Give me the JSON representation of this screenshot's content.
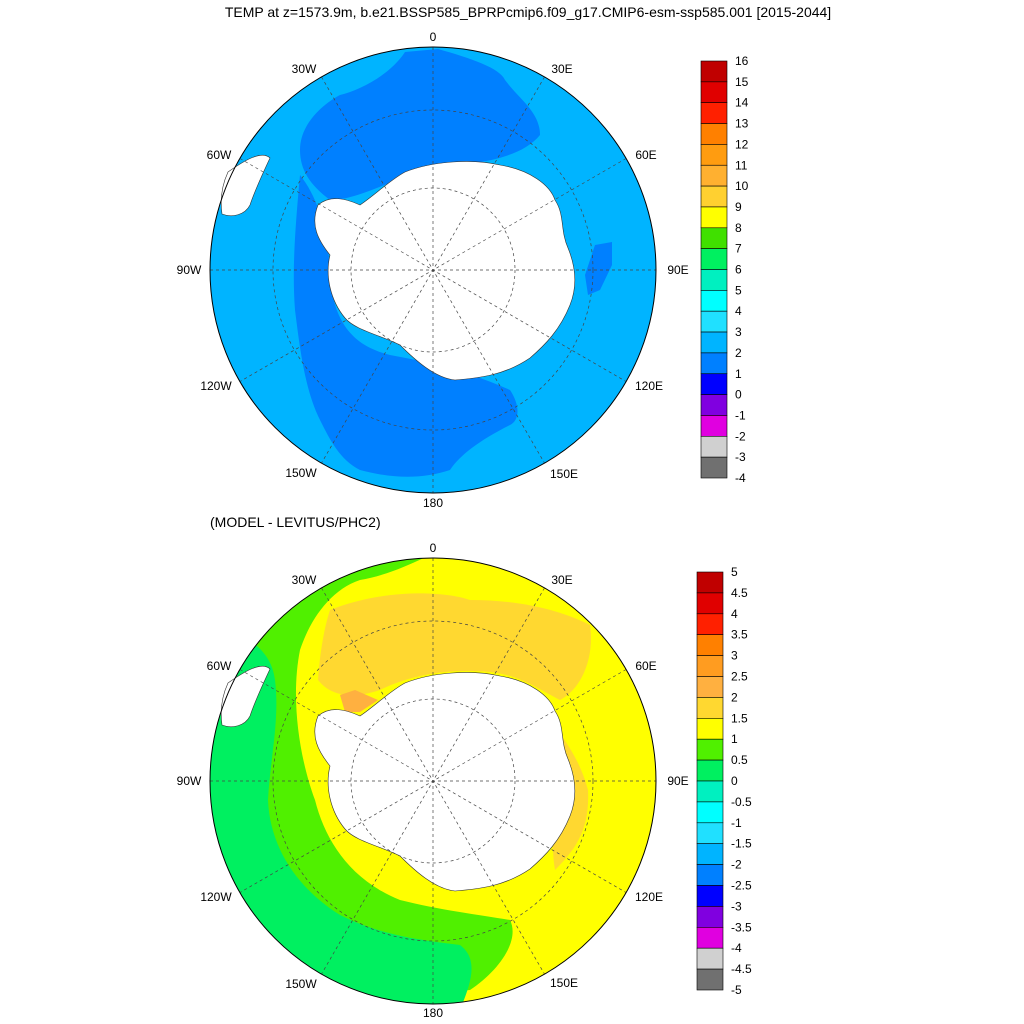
{
  "title": "TEMP at z=1573.9m, b.e21.BSSP585_BPRPcmip6.f09_g17.CMIP6-esm-ssp585.001 [2015-2044]",
  "subtitle": "(MODEL - LEVITUS/PHC2)",
  "longitude_labels": {
    "lon_0": "0",
    "lon_30e": "30E",
    "lon_60e": "60E",
    "lon_90e": "90E",
    "lon_120e": "120E",
    "lon_150e": "150E",
    "lon_180": "180",
    "lon_150w": "150W",
    "lon_120w": "120W",
    "lon_90w": "90W",
    "lon_60w": "60W",
    "lon_30w": "30W"
  },
  "colorbar_top": {
    "labels": [
      "16",
      "15",
      "14",
      "13",
      "12",
      "11",
      "10",
      "9",
      "8",
      "7",
      "6",
      "5",
      "4",
      "3",
      "2",
      "1",
      "0",
      "-1",
      "-2",
      "-3",
      "-4"
    ],
    "colors": [
      "#c00000",
      "#e00000",
      "#ff2000",
      "#ff8000",
      "#ff9c10",
      "#ffb030",
      "#ffd030",
      "#ffff00",
      "#40e000",
      "#00f060",
      "#00f0c0",
      "#00ffff",
      "#20e0ff",
      "#00b4ff",
      "#0080ff",
      "#0000ff",
      "#8000e0",
      "#e000e0",
      "#d0d0d0",
      "#707070"
    ]
  },
  "colorbar_bottom": {
    "labels": [
      "5",
      "4.5",
      "4",
      "3.5",
      "3",
      "2.5",
      "2",
      "1.5",
      "1",
      "0.5",
      "0",
      "-0.5",
      "-1",
      "-1.5",
      "-2",
      "-2.5",
      "-3",
      "-3.5",
      "-4",
      "-4.5",
      "-5"
    ],
    "colors": [
      "#c00000",
      "#e00000",
      "#ff2000",
      "#ff8000",
      "#ff9c20",
      "#ffb040",
      "#ffd830",
      "#ffff00",
      "#50f000",
      "#00f060",
      "#00f0c0",
      "#00ffff",
      "#20e0ff",
      "#00b4ff",
      "#0080ff",
      "#0000ff",
      "#8000e0",
      "#e000e0",
      "#d0d0d0",
      "#707070"
    ]
  },
  "map_colors": {
    "ocean_top": "#00b4ff",
    "ocean_top_warm": "#20e0ff",
    "ocean_top_cold": "#0080ff",
    "ocean_bottom_warm": "#ffff00",
    "ocean_bottom_warmer": "#ffd830",
    "ocean_bottom_warmest": "#ffb040",
    "ocean_bottom_cool": "#50f000",
    "ocean_bottom_cooler": "#00f060",
    "land": "#ffffff"
  }
}
